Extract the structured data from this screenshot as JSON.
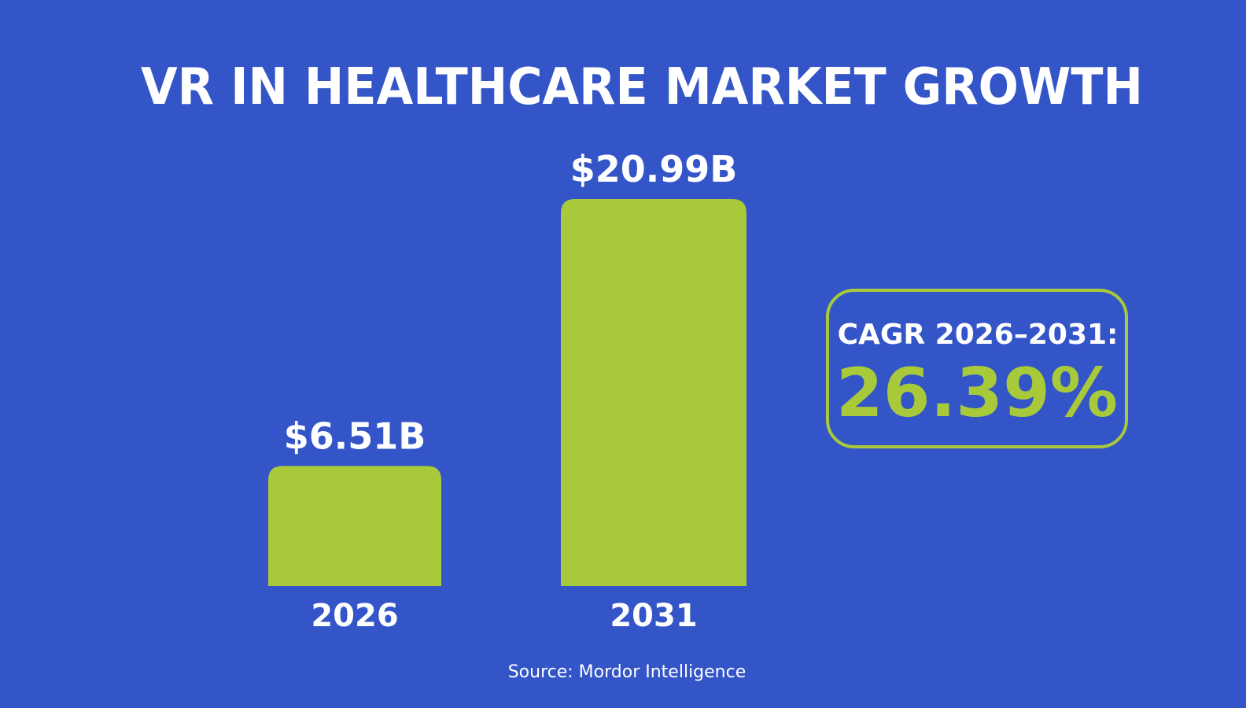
{
  "colors": {
    "background": "#3355c8",
    "bar": "#a8ca3a",
    "text": "#ffffff",
    "accent": "#a8ca3a"
  },
  "chart_data": {
    "type": "bar",
    "title": "VR IN HEALTHCARE MARKET GROWTH",
    "categories": [
      "2026",
      "2031"
    ],
    "values": [
      6.51,
      20.99
    ],
    "value_labels": [
      "$6.51B",
      "$20.99B"
    ],
    "xlabel": "",
    "ylabel": "",
    "ylim": [
      0,
      21
    ],
    "grid": false,
    "legend": "none"
  },
  "cagr": {
    "label": "CAGR 2026–2031:",
    "value": "26.39%"
  },
  "source": "Source: Mordor Intelligence"
}
